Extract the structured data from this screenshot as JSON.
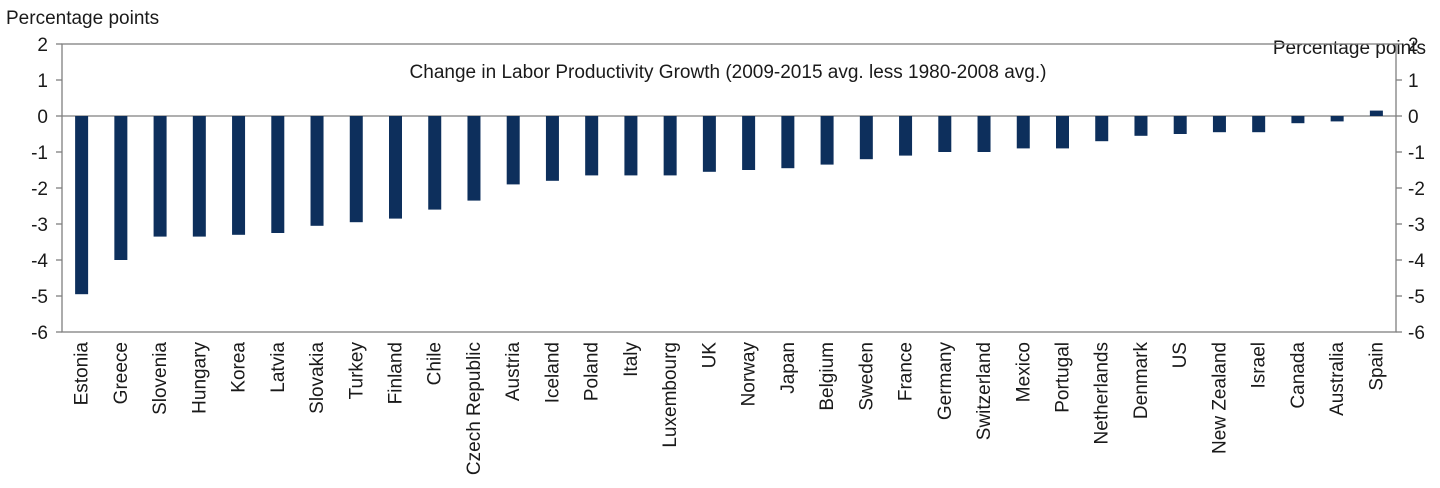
{
  "chart_data": {
    "type": "bar",
    "title": "Change in Labor Productivity Growth (2009-2015 avg. less 1980-2008 avg.)",
    "ylabel_left": "Percentage points",
    "ylabel_right": "Percentage points",
    "ylim": [
      -6,
      2
    ],
    "yticks": [
      2,
      1,
      0,
      -1,
      -2,
      -3,
      -4,
      -5,
      -6
    ],
    "grid": false,
    "bar_color": "#0d2f5c",
    "categories": [
      "Estonia",
      "Greece",
      "Slovenia",
      "Hungary",
      "Korea",
      "Latvia",
      "Slovakia",
      "Turkey",
      "Finland",
      "Chile",
      "Czech Republic",
      "Austria",
      "Iceland",
      "Poland",
      "Italy",
      "Luxembourg",
      "UK",
      "Norway",
      "Japan",
      "Belgium",
      "Sweden",
      "France",
      "Germany",
      "Switzerland",
      "Mexico",
      "Portugal",
      "Netherlands",
      "Denmark",
      "US",
      "New Zealand",
      "Israel",
      "Canada",
      "Australia",
      "Spain"
    ],
    "values": [
      -4.95,
      -4.0,
      -3.35,
      -3.35,
      -3.3,
      -3.25,
      -3.05,
      -2.95,
      -2.85,
      -2.6,
      -2.35,
      -1.9,
      -1.8,
      -1.65,
      -1.65,
      -1.65,
      -1.55,
      -1.5,
      -1.45,
      -1.35,
      -1.2,
      -1.1,
      -1.0,
      -1.0,
      -0.9,
      -0.9,
      -0.7,
      -0.55,
      -0.5,
      -0.45,
      -0.45,
      -0.2,
      -0.15,
      0.15
    ]
  }
}
